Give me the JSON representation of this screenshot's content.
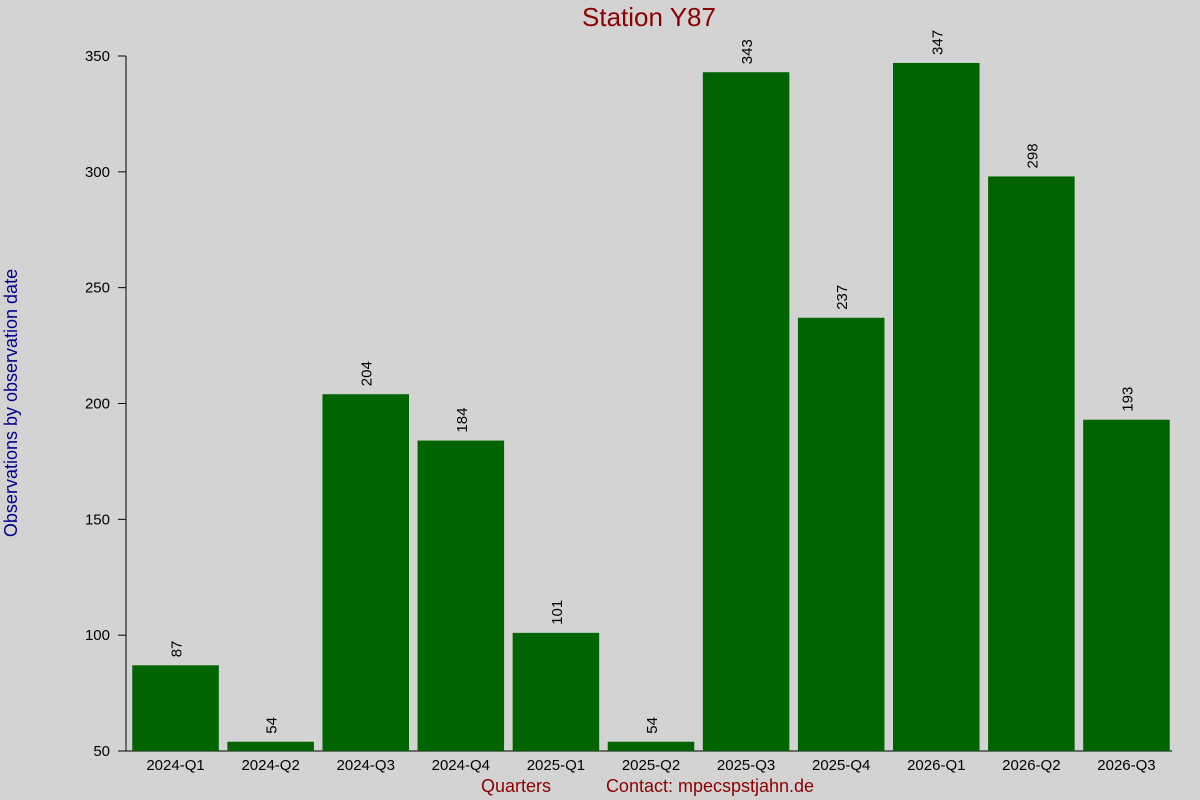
{
  "chart_data": {
    "type": "bar",
    "title": "Station Y87",
    "x_label": "Quarters",
    "y_label": "Observations by observation date",
    "footer": "Contact: mpecspstjahn.de",
    "categories": [
      "2024-Q1",
      "2024-Q2",
      "2024-Q3",
      "2024-Q4",
      "2025-Q1",
      "2025-Q2",
      "2025-Q3",
      "2025-Q4",
      "2026-Q1",
      "2026-Q2",
      "2026-Q3"
    ],
    "values": [
      87,
      54,
      204,
      184,
      101,
      54,
      343,
      237,
      347,
      298,
      193
    ],
    "color": "#006400",
    "ylim": [
      50,
      350
    ],
    "yticks": [
      50,
      100,
      150,
      200,
      250,
      300,
      350
    ],
    "grid": false
  }
}
